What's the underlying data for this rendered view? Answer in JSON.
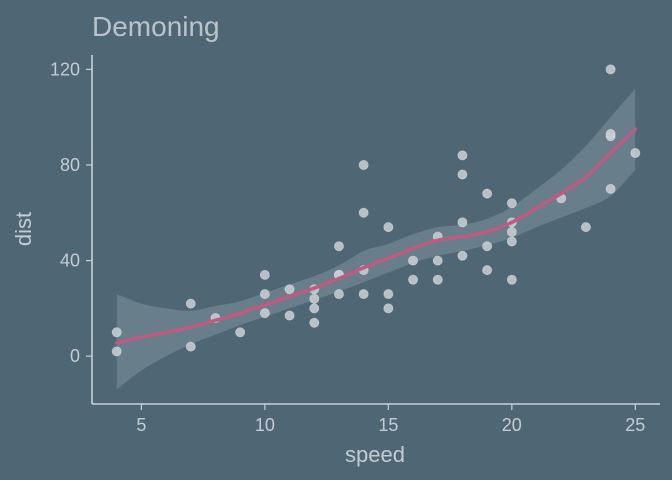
{
  "chart_data": {
    "type": "scatter",
    "title": "Demoning",
    "xlabel": "speed",
    "ylabel": "dist",
    "xlim": [
      3,
      26
    ],
    "ylim": [
      -20,
      126
    ],
    "xticks": [
      5,
      10,
      15,
      20,
      25
    ],
    "yticks": [
      0,
      40,
      80,
      120
    ],
    "grid": false,
    "legend": "none",
    "colors": {
      "background": "#4f6675",
      "points": "#c7cdd2",
      "smooth_line": "#bf5a80",
      "ribbon": "#7d919c",
      "axis": "#c8d2d8"
    },
    "points": [
      {
        "x": 4,
        "y": 2
      },
      {
        "x": 4,
        "y": 10
      },
      {
        "x": 7,
        "y": 4
      },
      {
        "x": 7,
        "y": 22
      },
      {
        "x": 8,
        "y": 16
      },
      {
        "x": 9,
        "y": 10
      },
      {
        "x": 10,
        "y": 18
      },
      {
        "x": 10,
        "y": 26
      },
      {
        "x": 10,
        "y": 34
      },
      {
        "x": 11,
        "y": 17
      },
      {
        "x": 11,
        "y": 28
      },
      {
        "x": 12,
        "y": 14
      },
      {
        "x": 12,
        "y": 20
      },
      {
        "x": 12,
        "y": 24
      },
      {
        "x": 12,
        "y": 28
      },
      {
        "x": 13,
        "y": 26
      },
      {
        "x": 13,
        "y": 34
      },
      {
        "x": 13,
        "y": 34
      },
      {
        "x": 13,
        "y": 46
      },
      {
        "x": 14,
        "y": 26
      },
      {
        "x": 14,
        "y": 36
      },
      {
        "x": 14,
        "y": 60
      },
      {
        "x": 14,
        "y": 80
      },
      {
        "x": 15,
        "y": 20
      },
      {
        "x": 15,
        "y": 26
      },
      {
        "x": 15,
        "y": 54
      },
      {
        "x": 16,
        "y": 32
      },
      {
        "x": 16,
        "y": 40
      },
      {
        "x": 17,
        "y": 32
      },
      {
        "x": 17,
        "y": 40
      },
      {
        "x": 17,
        "y": 50
      },
      {
        "x": 18,
        "y": 42
      },
      {
        "x": 18,
        "y": 56
      },
      {
        "x": 18,
        "y": 76
      },
      {
        "x": 18,
        "y": 84
      },
      {
        "x": 19,
        "y": 36
      },
      {
        "x": 19,
        "y": 46
      },
      {
        "x": 19,
        "y": 68
      },
      {
        "x": 20,
        "y": 32
      },
      {
        "x": 20,
        "y": 48
      },
      {
        "x": 20,
        "y": 52
      },
      {
        "x": 20,
        "y": 56
      },
      {
        "x": 20,
        "y": 64
      },
      {
        "x": 22,
        "y": 66
      },
      {
        "x": 23,
        "y": 54
      },
      {
        "x": 24,
        "y": 70
      },
      {
        "x": 24,
        "y": 92
      },
      {
        "x": 24,
        "y": 93
      },
      {
        "x": 24,
        "y": 120
      },
      {
        "x": 25,
        "y": 85
      }
    ],
    "smooth": {
      "method": "loess",
      "x": [
        4,
        5,
        6,
        7,
        8,
        9,
        10,
        11,
        12,
        13,
        14,
        15,
        16,
        17,
        18,
        19,
        20,
        21,
        22,
        23,
        24,
        25
      ],
      "y": [
        5.5,
        8,
        10,
        12,
        15,
        18,
        21.5,
        25,
        28.5,
        32.5,
        37,
        41,
        45,
        48.5,
        50,
        52,
        56,
        62,
        68,
        75,
        85,
        95
      ],
      "lower": [
        -14,
        -6,
        0,
        5,
        9,
        13,
        16.5,
        20,
        23.5,
        27,
        31,
        35,
        39,
        42,
        44,
        46.5,
        49.5,
        54,
        58,
        62,
        67,
        78
      ],
      "upper": [
        26,
        22,
        20,
        19,
        21,
        23,
        26.5,
        30,
        33.5,
        38,
        44,
        47,
        51,
        54,
        55,
        57.5,
        62.5,
        70,
        78,
        88,
        100,
        112
      ]
    }
  }
}
